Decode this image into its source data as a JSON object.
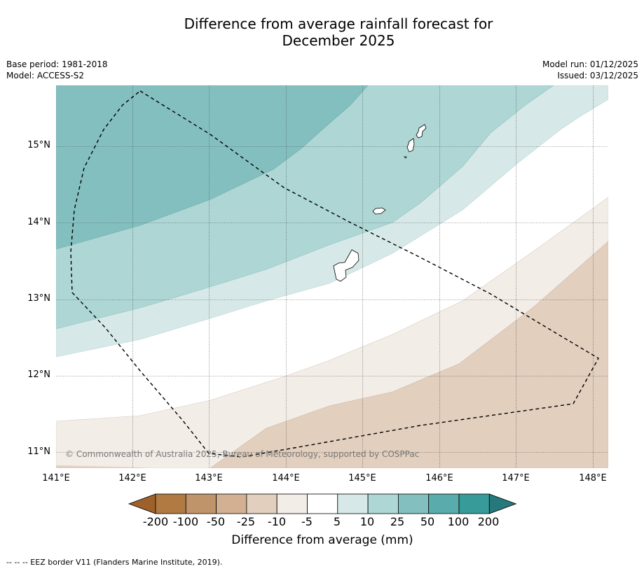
{
  "title_line1": "Difference from average rainfall forecast for",
  "title_line2": "December 2025",
  "meta": {
    "base_period": "Base period: 1981-2018",
    "model": "Model: ACCESS-S2",
    "model_run": "Model run: 01/12/2025",
    "issued": "Issued: 03/12/2025"
  },
  "map": {
    "lon_labels": [
      "141°E",
      "142°E",
      "143°E",
      "144°E",
      "145°E",
      "146°E",
      "147°E",
      "148°E"
    ],
    "lat_labels": [
      "15°N",
      "14°N",
      "13°N",
      "12°N",
      "11°N"
    ],
    "copyright": "© Commonwealth of Australia 2025, Bureau of Meteorology, supported by COSPPac",
    "islands": [
      "Guam",
      "Rota",
      "Aguijan",
      "Tinian",
      "Saipan"
    ]
  },
  "colorbar": {
    "title": "Difference from average (mm)",
    "ticks": [
      "-200",
      "-100",
      "-50",
      "-25",
      "-10",
      "-5",
      "5",
      "10",
      "25",
      "50",
      "100",
      "200"
    ],
    "colors": [
      "#9e612b",
      "#b07a42",
      "#c0946a",
      "#d2b091",
      "#e2cfbe",
      "#f3ede8",
      "#ffffff",
      "#d6e9e8",
      "#add6d5",
      "#84bfbf",
      "#5aabab",
      "#379b9a",
      "#25797a"
    ]
  },
  "footer": "--  --  -- EEZ border V11 (Flanders Marine Institute, 2019)."
}
